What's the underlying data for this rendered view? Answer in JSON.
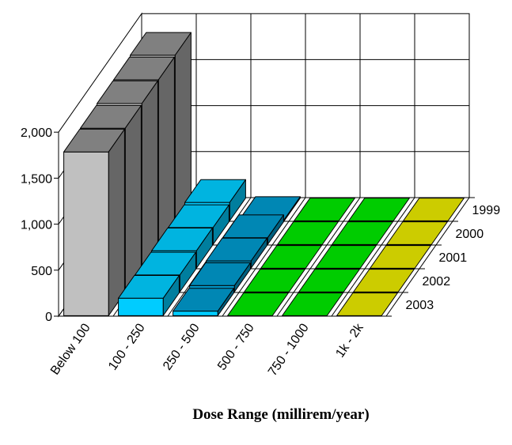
{
  "chart_data": {
    "type": "bar",
    "subtype": "3d-column",
    "categories": [
      "Below 100",
      "100 - 250",
      "250 - 500",
      "500 - 750",
      "750 - 1000",
      "1k - 2k"
    ],
    "series": [
      {
        "name": "2003",
        "values": [
          1780,
          190,
          50,
          0,
          0,
          0
        ]
      },
      {
        "name": "2002",
        "values": [
          1780,
          185,
          70,
          0,
          0,
          0
        ]
      },
      {
        "name": "2001",
        "values": [
          1790,
          190,
          80,
          0,
          0,
          0
        ]
      },
      {
        "name": "2000",
        "values": [
          1790,
          185,
          75,
          0,
          0,
          0
        ]
      },
      {
        "name": "1999",
        "values": [
          1800,
          200,
          15,
          0,
          0,
          0
        ]
      }
    ],
    "xlabel": "Dose Range (millirem/year)",
    "ylabel": "",
    "ylim": [
      0,
      2000
    ],
    "y_ticks": [
      "0",
      "500",
      "1,000",
      "1,500",
      "2,000"
    ],
    "grid": true,
    "colors": {
      "Below 100": "#c0c0c0",
      "100 - 250": "#00ccff",
      "250 - 500": "#0099cc",
      "500 - 750": "#00cc00",
      "750 - 1000": "#00cc00",
      "1k - 2k": "#cccc00",
      "front_face_by_series": {
        "2003": {
          "Below 100": "#c0c0c0",
          "100 - 250": "#00ccff",
          "250 - 500": "#00ccff"
        }
      }
    }
  }
}
